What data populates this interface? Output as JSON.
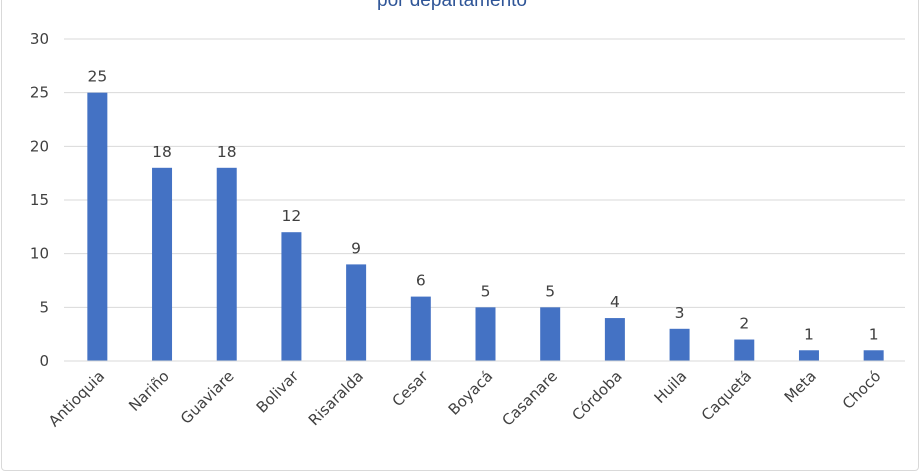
{
  "chart_data": {
    "type": "bar",
    "title": "por departamento",
    "categories": [
      "Antioquia",
      "Nariño",
      "Guaviare",
      "Bolivar",
      "Risaralda",
      "Cesar",
      "Boyacá",
      "Casanare",
      "Córdoba",
      "Huila",
      "Caquetá",
      "Meta",
      "Chocó"
    ],
    "values": [
      25,
      18,
      18,
      12,
      9,
      6,
      5,
      5,
      4,
      3,
      2,
      1,
      1
    ],
    "ylim": [
      0,
      30
    ],
    "yticks": [
      0,
      5,
      10,
      15,
      20,
      25,
      30
    ],
    "grid": true,
    "legend": "none",
    "bar_color": "#4472c4",
    "grid_color": "#d9d9d9"
  }
}
